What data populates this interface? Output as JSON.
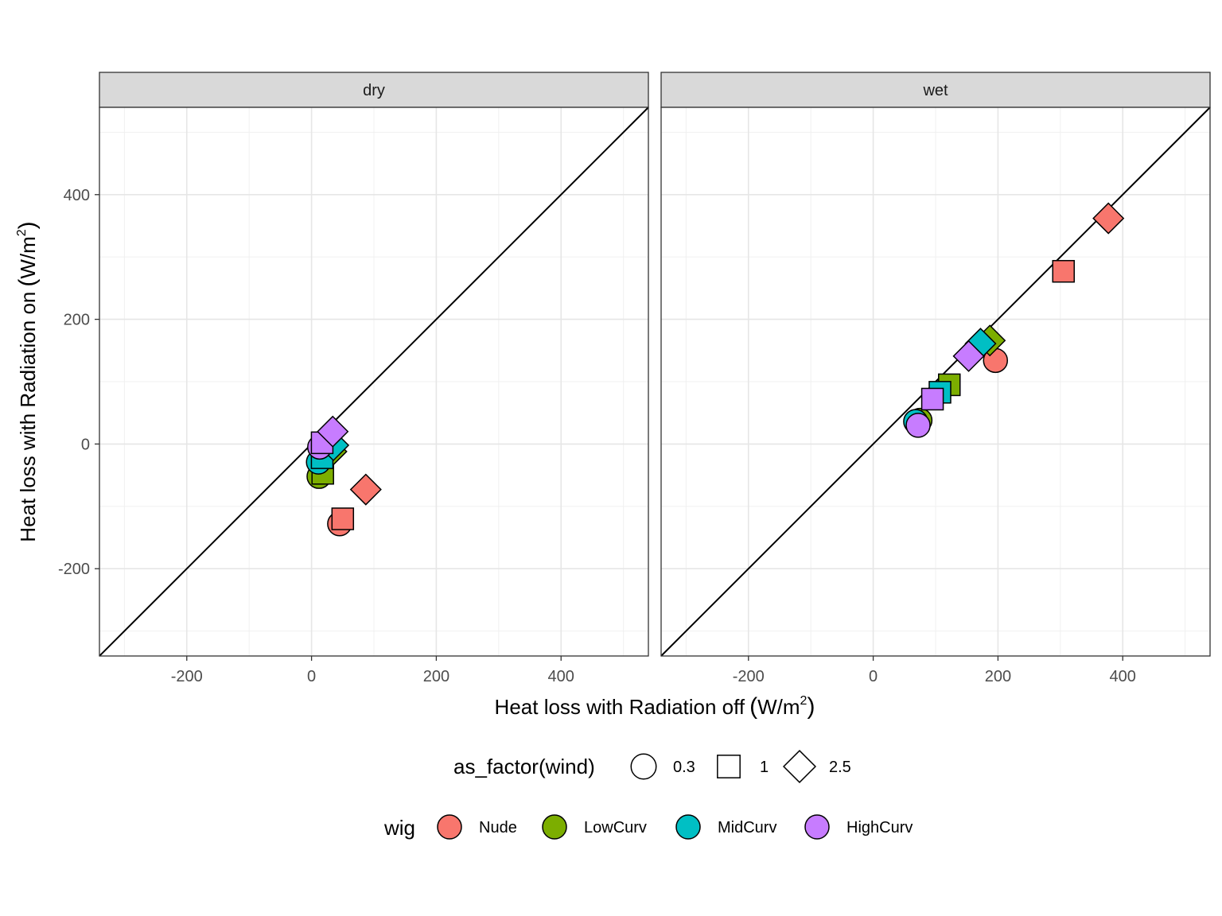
{
  "chart_data": {
    "type": "scatter",
    "facets": [
      "dry",
      "wet"
    ],
    "xlabel": "Heat loss with Radiation off",
    "ylabel": "Heat loss with Radiation on",
    "unit_text": "W/m",
    "unit_superscript": "2",
    "xlim": [
      -340,
      540
    ],
    "ylim": [
      -340,
      540
    ],
    "x_ticks": [
      -200,
      0,
      200,
      400
    ],
    "y_ticks": [
      -200,
      0,
      200,
      400
    ],
    "reference_line": "y = x",
    "grid": true,
    "legend_position": "bottom",
    "legend_shape": {
      "title": "as_factor(wind)",
      "entries": [
        {
          "label": "0.3",
          "shape": "circle"
        },
        {
          "label": "1",
          "shape": "square"
        },
        {
          "label": "2.5",
          "shape": "diamond"
        }
      ]
    },
    "legend_color": {
      "title": "wig",
      "entries": [
        {
          "label": "Nude",
          "color": "#F8766D"
        },
        {
          "label": "LowCurv",
          "color": "#7CAE00"
        },
        {
          "label": "MidCurv",
          "color": "#00BFC4"
        },
        {
          "label": "HighCurv",
          "color": "#C77CFF"
        }
      ]
    },
    "series": [
      {
        "facet": "dry",
        "wig": "Nude",
        "wind": "0.3",
        "x": 45,
        "y": -128
      },
      {
        "facet": "dry",
        "wig": "Nude",
        "wind": "1",
        "x": 50,
        "y": -120
      },
      {
        "facet": "dry",
        "wig": "Nude",
        "wind": "2.5",
        "x": 87,
        "y": -73
      },
      {
        "facet": "dry",
        "wig": "LowCurv",
        "wind": "0.3",
        "x": 12,
        "y": -52
      },
      {
        "facet": "dry",
        "wig": "LowCurv",
        "wind": "1",
        "x": 18,
        "y": -47
      },
      {
        "facet": "dry",
        "wig": "LowCurv",
        "wind": "2.5",
        "x": 32,
        "y": -12
      },
      {
        "facet": "dry",
        "wig": "MidCurv",
        "wind": "0.3",
        "x": 11,
        "y": -29
      },
      {
        "facet": "dry",
        "wig": "MidCurv",
        "wind": "1",
        "x": 17,
        "y": -22
      },
      {
        "facet": "dry",
        "wig": "MidCurv",
        "wind": "2.5",
        "x": 35,
        "y": -2
      },
      {
        "facet": "dry",
        "wig": "HighCurv",
        "wind": "0.3",
        "x": 13,
        "y": -5
      },
      {
        "facet": "dry",
        "wig": "HighCurv",
        "wind": "1",
        "x": 17,
        "y": 2
      },
      {
        "facet": "dry",
        "wig": "HighCurv",
        "wind": "2.5",
        "x": 34,
        "y": 20
      },
      {
        "facet": "wet",
        "wig": "Nude",
        "wind": "0.3",
        "x": 196,
        "y": 134
      },
      {
        "facet": "wet",
        "wig": "Nude",
        "wind": "1",
        "x": 305,
        "y": 277
      },
      {
        "facet": "wet",
        "wig": "Nude",
        "wind": "2.5",
        "x": 377,
        "y": 362
      },
      {
        "facet": "wet",
        "wig": "LowCurv",
        "wind": "0.3",
        "x": 75,
        "y": 38
      },
      {
        "facet": "wet",
        "wig": "LowCurv",
        "wind": "1",
        "x": 122,
        "y": 95
      },
      {
        "facet": "wet",
        "wig": "LowCurv",
        "wind": "2.5",
        "x": 187,
        "y": 166
      },
      {
        "facet": "wet",
        "wig": "MidCurv",
        "wind": "0.3",
        "x": 68,
        "y": 36
      },
      {
        "facet": "wet",
        "wig": "MidCurv",
        "wind": "1",
        "x": 107,
        "y": 83
      },
      {
        "facet": "wet",
        "wig": "MidCurv",
        "wind": "2.5",
        "x": 172,
        "y": 161
      },
      {
        "facet": "wet",
        "wig": "HighCurv",
        "wind": "0.3",
        "x": 72,
        "y": 30
      },
      {
        "facet": "wet",
        "wig": "HighCurv",
        "wind": "1",
        "x": 95,
        "y": 72
      },
      {
        "facet": "wet",
        "wig": "HighCurv",
        "wind": "2.5",
        "x": 153,
        "y": 141
      }
    ]
  }
}
